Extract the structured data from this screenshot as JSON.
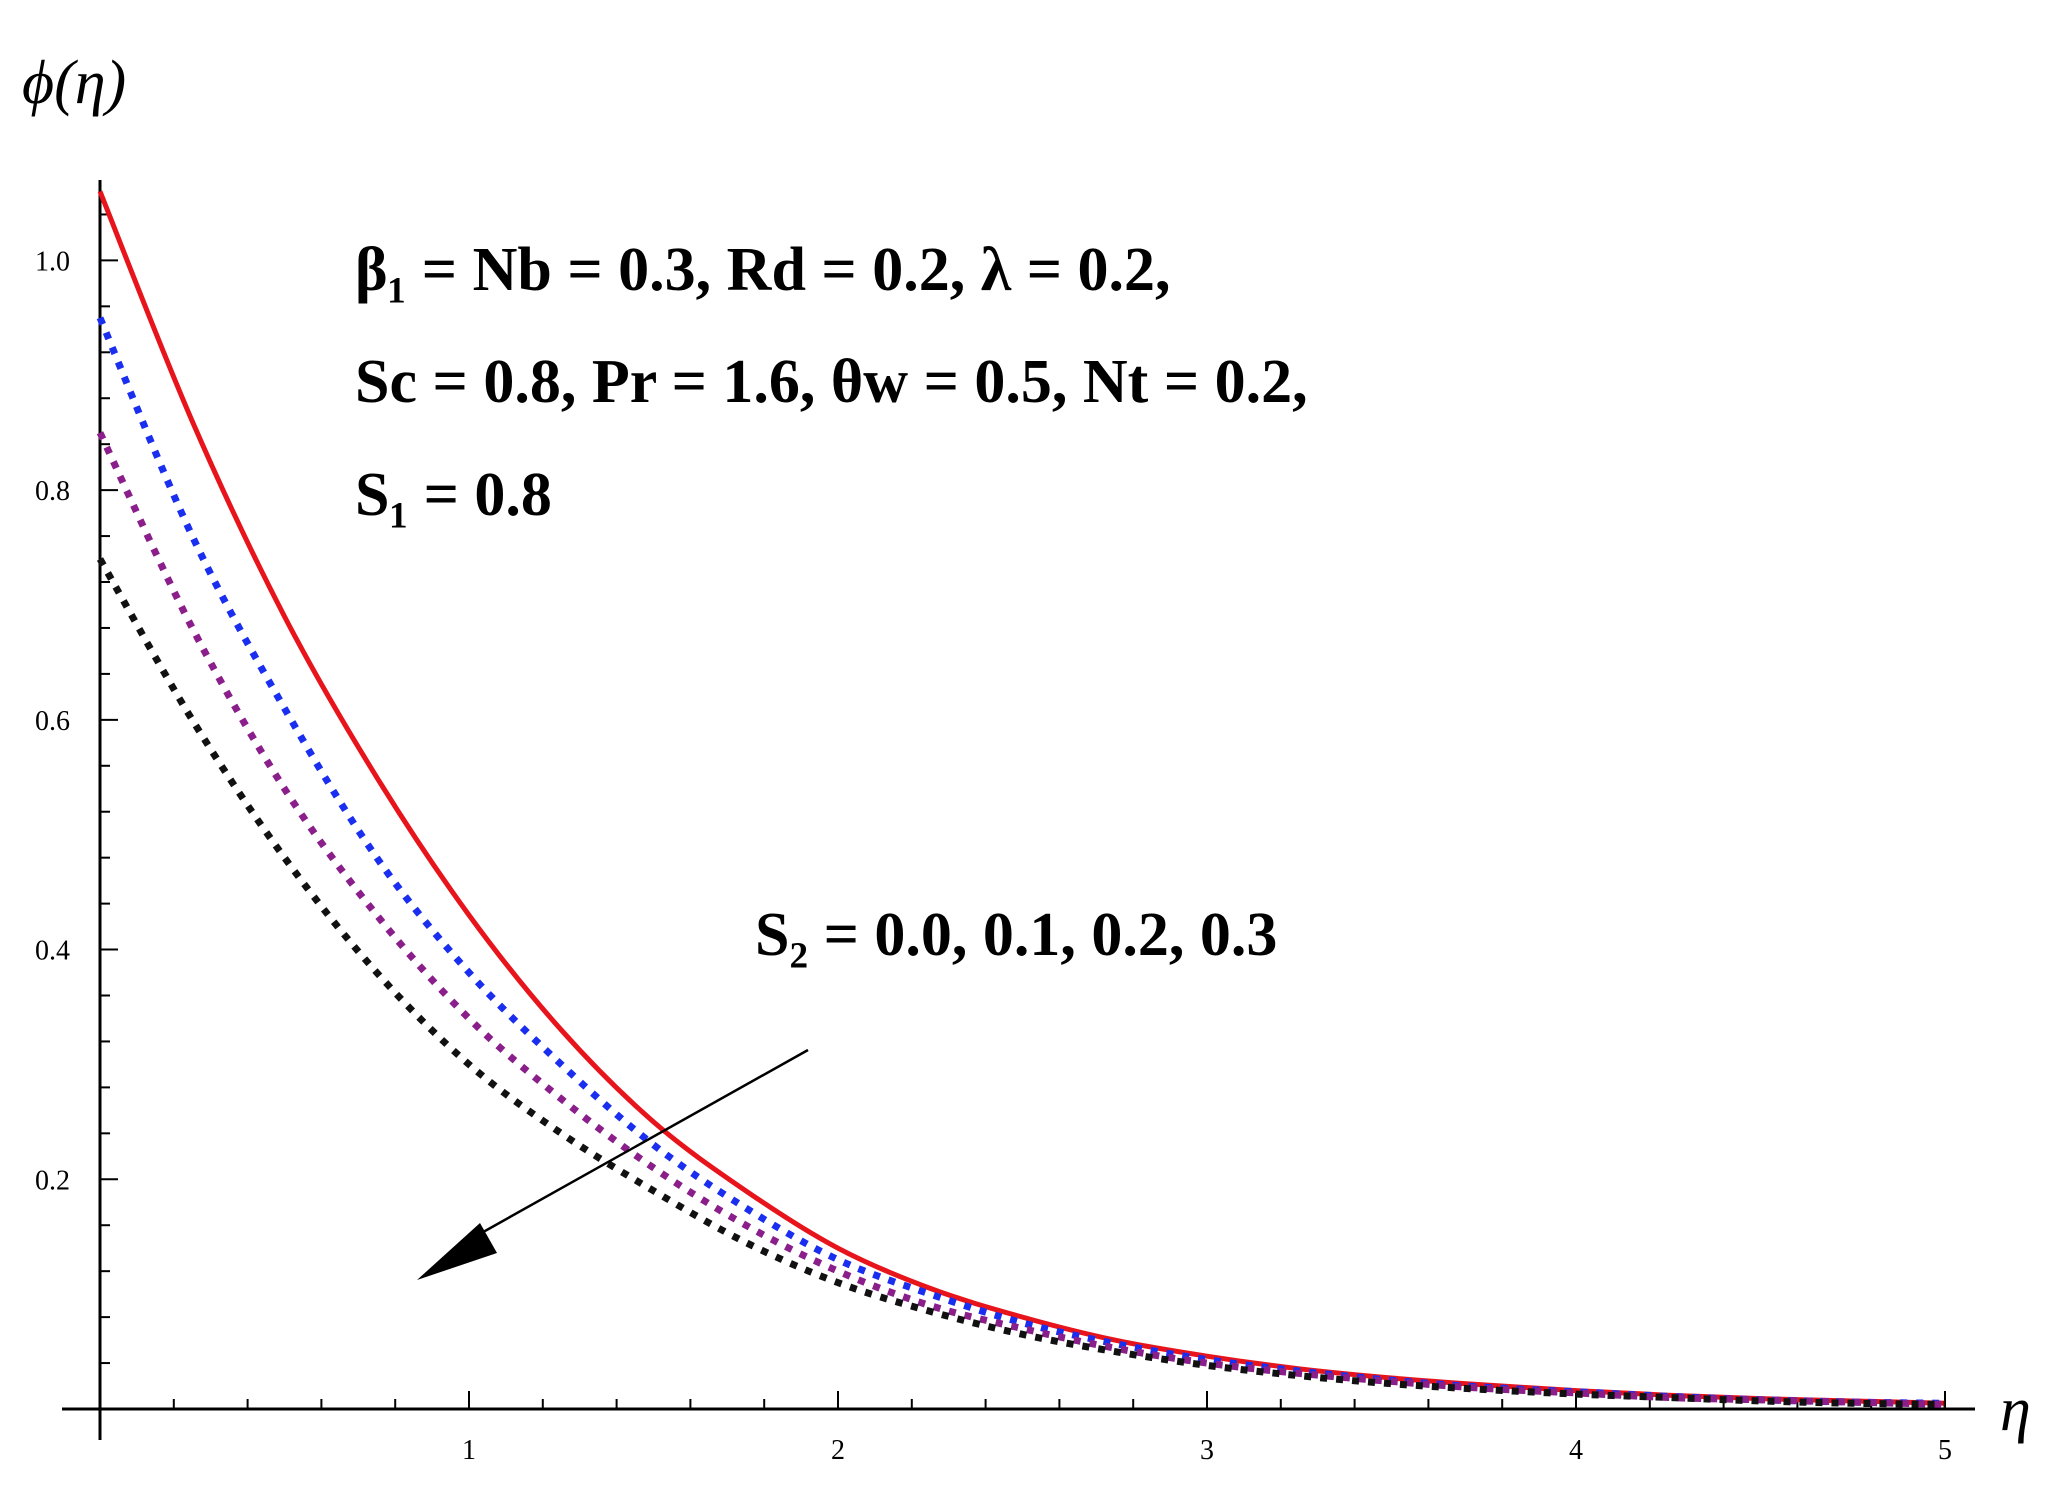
{
  "chart_data": {
    "type": "line",
    "title": "",
    "xlabel": "η",
    "ylabel": "ϕ(η)",
    "xlim": [
      0,
      5
    ],
    "ylim": [
      0,
      1.07
    ],
    "x_ticks": [
      1,
      2,
      3,
      4,
      5
    ],
    "x_tick_labels": [
      "1",
      "2",
      "3",
      "4",
      "5"
    ],
    "y_ticks": [
      0.2,
      0.4,
      0.6,
      0.8,
      1.0
    ],
    "y_tick_labels": [
      "0.2",
      "0.4",
      "0.6",
      "0.8",
      "1.0"
    ],
    "grid": false,
    "legend": "none",
    "x": [
      0,
      0.25,
      0.5,
      0.75,
      1.0,
      1.25,
      1.5,
      1.75,
      2.0,
      2.25,
      2.5,
      2.75,
      3.0,
      3.25,
      3.5,
      3.75,
      4.0,
      4.25,
      4.5,
      4.75,
      5.0
    ],
    "series": [
      {
        "parameter": "S2 = 0.0",
        "color": "#e8141c",
        "style": "solid",
        "values": [
          1.06,
          0.86,
          0.69,
          0.55,
          0.43,
          0.33,
          0.25,
          0.19,
          0.14,
          0.105,
          0.08,
          0.06,
          0.046,
          0.035,
          0.027,
          0.021,
          0.016,
          0.012,
          0.009,
          0.007,
          0.005
        ]
      },
      {
        "parameter": "S2 = 0.1",
        "color": "#1a2ef0",
        "style": "dotted",
        "values": [
          0.95,
          0.76,
          0.61,
          0.48,
          0.38,
          0.3,
          0.23,
          0.175,
          0.13,
          0.1,
          0.075,
          0.057,
          0.043,
          0.033,
          0.025,
          0.019,
          0.015,
          0.011,
          0.008,
          0.006,
          0.005
        ]
      },
      {
        "parameter": "S2 = 0.2",
        "color": "#8a1e8a",
        "style": "dotted",
        "values": [
          0.85,
          0.68,
          0.54,
          0.43,
          0.34,
          0.27,
          0.21,
          0.16,
          0.12,
          0.09,
          0.07,
          0.053,
          0.04,
          0.031,
          0.024,
          0.018,
          0.014,
          0.01,
          0.008,
          0.006,
          0.004
        ]
      },
      {
        "parameter": "S2 = 0.3",
        "color": "#111111",
        "style": "dotted",
        "values": [
          0.74,
          0.6,
          0.48,
          0.38,
          0.3,
          0.24,
          0.19,
          0.145,
          0.11,
          0.085,
          0.065,
          0.05,
          0.038,
          0.029,
          0.022,
          0.017,
          0.013,
          0.01,
          0.007,
          0.005,
          0.004
        ]
      }
    ],
    "annotations": {
      "params_line1": "β₁ = Nb = 0.3, Rd = 0.2, λ = 0.2,",
      "params_line2": "Sc = 0.8, Pr = 1.6, θw = 0.5, Nt = 0.2,",
      "params_line3": "S₁ = 0.8",
      "trend_label": "S₂ = 0.0, 0.1, 0.2, 0.3"
    }
  }
}
